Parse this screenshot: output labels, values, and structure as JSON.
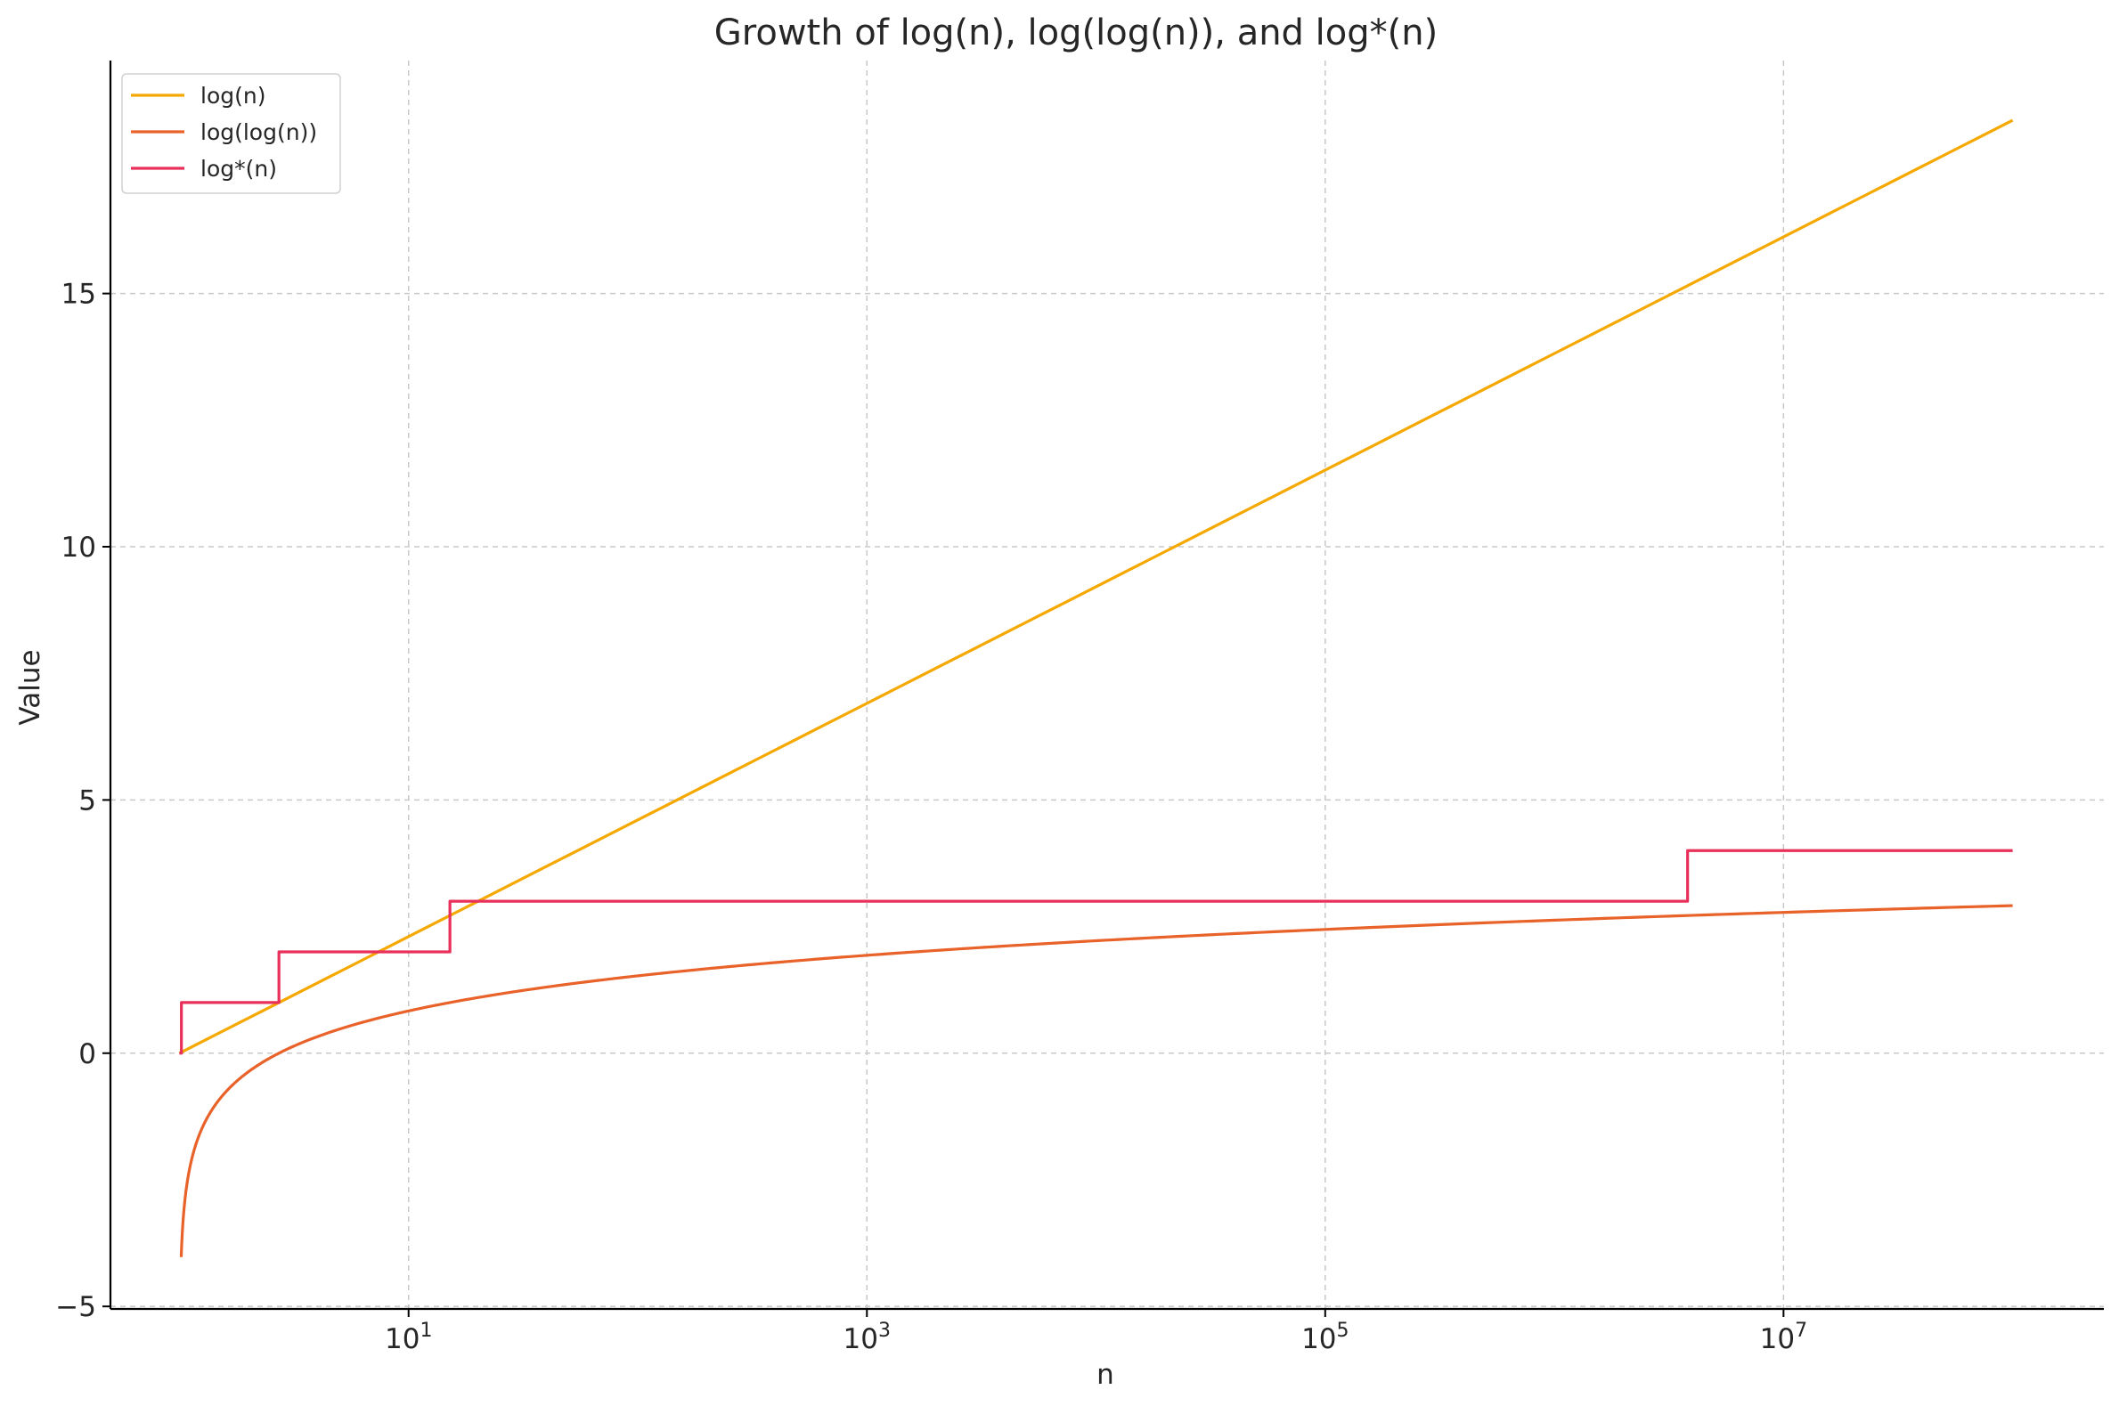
{
  "chart_data": {
    "type": "line",
    "title": "Growth of log(n), log(log(n)), and log*(n)",
    "xlabel": "n",
    "ylabel": "Value",
    "xscale": "log",
    "xlim": [
      0.5,
      250000000
    ],
    "ylim": [
      -5.05,
      19.6
    ],
    "xticks": [
      {
        "value": 10,
        "base": "10",
        "exp": "1"
      },
      {
        "value": 1000,
        "base": "10",
        "exp": "3"
      },
      {
        "value": 100000,
        "base": "10",
        "exp": "5"
      },
      {
        "value": 10000000,
        "base": "10",
        "exp": "7"
      }
    ],
    "yticks": [
      {
        "value": -5,
        "label": "−5"
      },
      {
        "value": 0,
        "label": "0"
      },
      {
        "value": 5,
        "label": "5"
      },
      {
        "value": 10,
        "label": "10"
      },
      {
        "value": 15,
        "label": "15"
      }
    ],
    "grid": true,
    "legend_position": "top-left",
    "series": [
      {
        "name": "log(n)",
        "color": "#f5a800",
        "x": [
          1,
          10,
          100,
          1000,
          10000,
          100000,
          1000000,
          10000000,
          100000000
        ],
        "y": [
          0,
          2.303,
          4.605,
          6.908,
          9.21,
          11.513,
          13.816,
          16.118,
          18.421
        ]
      },
      {
        "name": "log(log(n))",
        "color": "#e8622a",
        "x": [
          1.018,
          1.03,
          1.05,
          1.08,
          1.12,
          1.2,
          1.35,
          1.6,
          2,
          2.718,
          4,
          6,
          10,
          20,
          50,
          100,
          300,
          1000,
          3000,
          10000,
          100000,
          1000000,
          10000000,
          100000000
        ],
        "y": [
          -4.0,
          -3.52,
          -3.02,
          -2.56,
          -2.17,
          -1.7,
          -1.2,
          -0.75,
          -0.37,
          0,
          0.33,
          0.58,
          0.83,
          1.1,
          1.36,
          1.53,
          1.74,
          1.93,
          2.08,
          2.22,
          2.44,
          2.63,
          2.78,
          2.91
        ]
      },
      {
        "name": "log*(n)",
        "color": "#e8305a",
        "step": true,
        "x": [
          1,
          1.02,
          1.02,
          2.718,
          2.718,
          15.15,
          15.15,
          3814279,
          3814279,
          100000000
        ],
        "y": [
          0,
          0,
          1,
          1,
          2,
          2,
          3,
          3,
          4,
          4
        ]
      }
    ]
  }
}
